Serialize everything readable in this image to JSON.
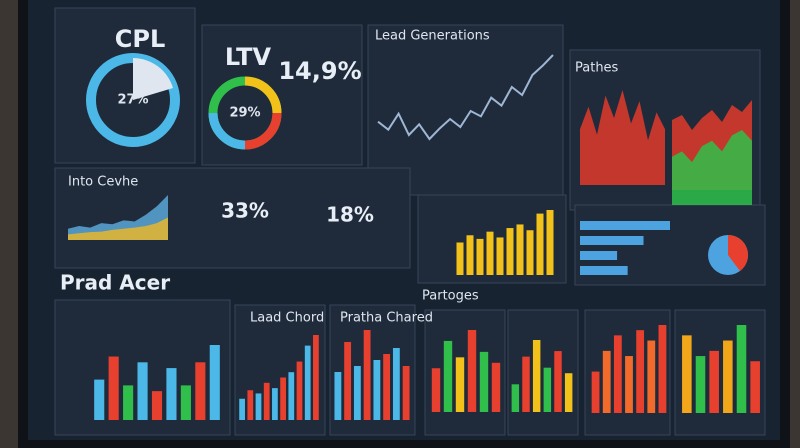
{
  "cpl": {
    "title": "CPL",
    "value": "27%"
  },
  "ltv": {
    "title": "LTV",
    "value": "29%",
    "stat": "14,9%"
  },
  "lead": {
    "title": "Lead Generations",
    "color": "#9fb6d4",
    "values": [
      40,
      34,
      46,
      30,
      38,
      27,
      35,
      42,
      36,
      48,
      44,
      58,
      52,
      66,
      60,
      75,
      82,
      90
    ]
  },
  "pathes": {
    "title": "Pathes",
    "red": {
      "color": "#e0392b",
      "values": [
        50,
        70,
        45,
        80,
        60,
        85,
        55,
        75,
        40,
        65,
        50
      ]
    },
    "green": {
      "color": "#2fbf4a",
      "values": [
        45,
        50,
        40,
        55,
        60,
        50,
        65,
        70,
        60
      ]
    },
    "red2": {
      "color": "#e0392b",
      "values": [
        70,
        75,
        60,
        72,
        80,
        68,
        85,
        78,
        90
      ]
    }
  },
  "intro": {
    "title": "Into Cevhe",
    "stat1": "33%",
    "stat2": "18%",
    "area": {
      "color": "#5aa7d8",
      "values": [
        20,
        25,
        22,
        30,
        28,
        35,
        33,
        45,
        60,
        80
      ]
    },
    "area2": {
      "color": "#e8b62a",
      "values": [
        10,
        12,
        14,
        15,
        18,
        20,
        22,
        25,
        30,
        40
      ]
    }
  },
  "yellow": {
    "color": "#f2c21b",
    "values": [
      45,
      55,
      50,
      60,
      52,
      65,
      70,
      62,
      85,
      90
    ]
  },
  "hbars": {
    "color": "#4ca3e0",
    "values": [
      85,
      60,
      35,
      45
    ]
  },
  "prad": {
    "title": "Prad Acer",
    "colors": [
      "#4cb8e8",
      "#e8402e",
      "#2fbf4a",
      "#4cb8e8",
      "#e8402e",
      "#4cb8e8",
      "#2fbf4a",
      "#e8402e",
      "#4cb8e8"
    ],
    "values": [
      35,
      55,
      30,
      50,
      25,
      45,
      30,
      50,
      65
    ]
  },
  "laad": {
    "title": "Laad Chord",
    "colors": [
      "#4cb8e8",
      "#e8402e"
    ],
    "values": [
      20,
      28,
      25,
      35,
      30,
      40,
      45,
      55,
      70,
      80
    ]
  },
  "pratha": {
    "title": "Pratha Chared",
    "colors": [
      "#4cb8e8",
      "#e8402e"
    ],
    "values": [
      40,
      65,
      45,
      75,
      50,
      55,
      60,
      45
    ]
  },
  "partoges": {
    "title": "Partoges",
    "a": {
      "colors": [
        "#e8402e",
        "#2fbf4a",
        "#f2c21b",
        "#e8402e",
        "#2fbf4a"
      ],
      "values": [
        40,
        65,
        50,
        75,
        55,
        45
      ]
    },
    "b": {
      "colors": [
        "#2fbf4a",
        "#e8402e",
        "#f2c21b"
      ],
      "values": [
        25,
        50,
        65,
        40,
        55,
        35
      ]
    },
    "c": {
      "colors": [
        "#e8402e",
        "#f26b2a"
      ],
      "values": [
        40,
        60,
        75,
        55,
        80,
        70,
        85
      ]
    },
    "d": {
      "colors": [
        "#f2a71b",
        "#2fbf4a",
        "#e8402e"
      ],
      "values": [
        75,
        55,
        60,
        70,
        85,
        50
      ]
    }
  }
}
